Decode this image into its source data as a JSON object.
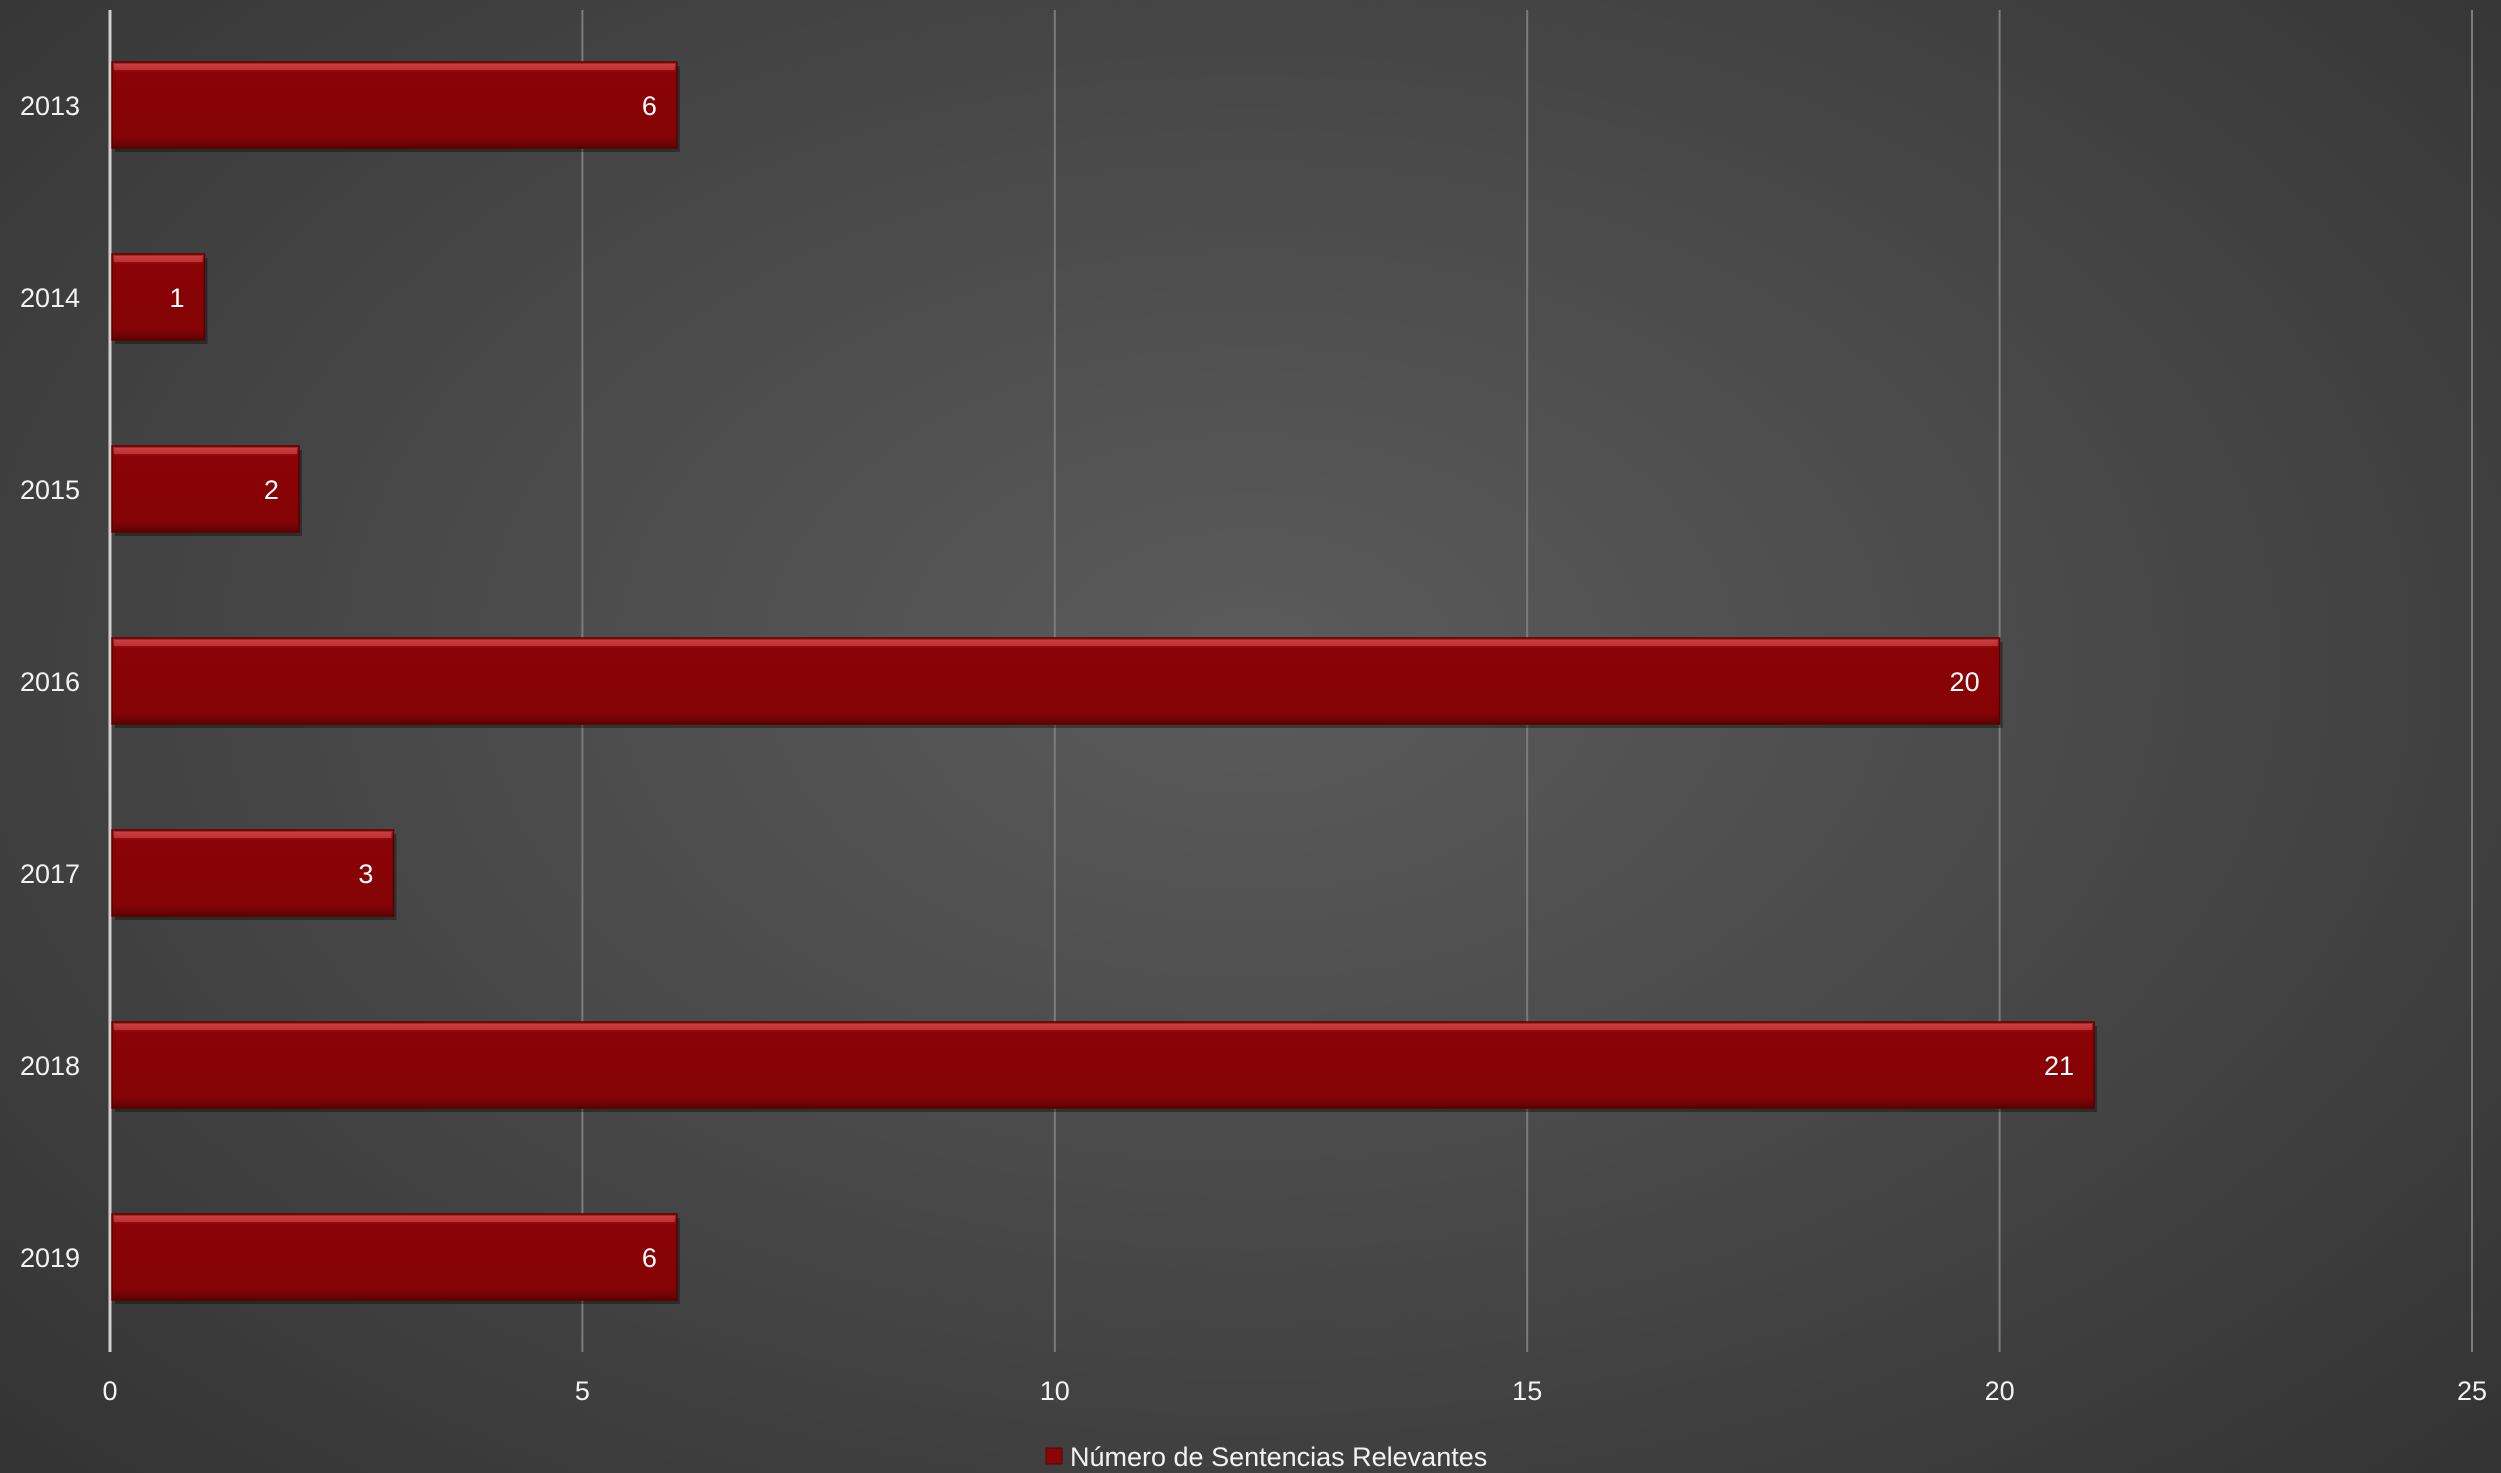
{
  "chart_data": {
    "type": "bar",
    "orientation": "horizontal",
    "categories": [
      "2013",
      "2014",
      "2015",
      "2016",
      "2017",
      "2018",
      "2019"
    ],
    "series": [
      {
        "name": "Número de Sentencias Relevantes",
        "values": [
          6,
          1,
          2,
          20,
          3,
          21,
          6
        ],
        "color": "#8b0306"
      }
    ],
    "title": "",
    "xlabel": "",
    "ylabel": "",
    "xlim": [
      0,
      25
    ],
    "x_ticks": [
      "0",
      "5",
      "10",
      "15",
      "20",
      "25"
    ],
    "grid": "vertical",
    "legend": "bottom",
    "data_labels": true
  }
}
